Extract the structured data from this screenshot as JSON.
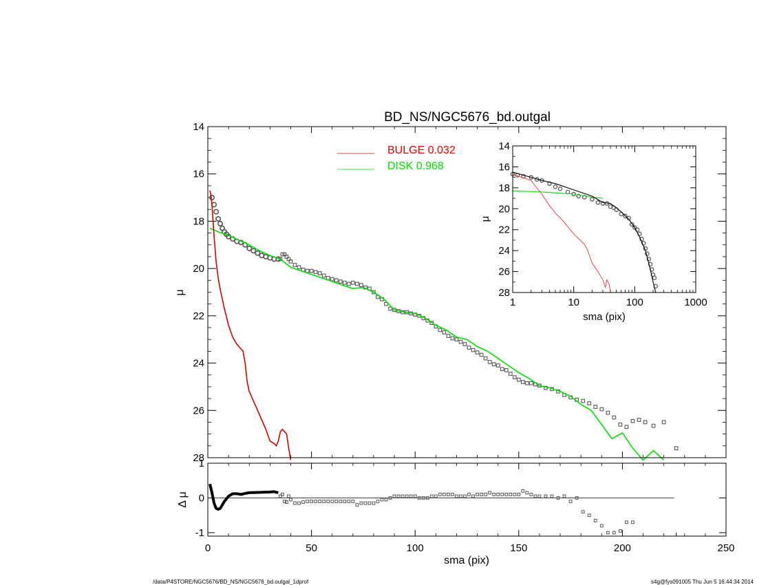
{
  "figure": {
    "title": "BD_NS/NGC5676_bd.outgal",
    "footer_left": "/data/P4STORE/NGC5676/BD_NS/NGC5676_bd.outgal_1dprof",
    "footer_right": "s4g@fys091005  Thu Jun  5 16:44:34 2014"
  },
  "legend": [
    {
      "label": "BULGE  0.032",
      "color": "#dd0000"
    },
    {
      "label": "DISK  0.968",
      "color": "#00dd00"
    }
  ],
  "colors": {
    "data": "#555555",
    "bulge": "#cc0000",
    "disk": "#00dd00",
    "model": "#000000",
    "inset_bulge": "#ee3333"
  },
  "chart_data": [
    {
      "type": "scatter",
      "role": "main surface brightness profile",
      "title": "BD_NS/NGC5676_bd.outgal",
      "xlabel": "sma (pix)",
      "ylabel": "μ",
      "xlim": [
        0,
        250
      ],
      "ylim": [
        28,
        14
      ],
      "yaxis_inverted": true,
      "x_ticks": [
        "0",
        "50",
        "100",
        "150",
        "200",
        "250"
      ],
      "y_ticks": [
        "14",
        "16",
        "18",
        "20",
        "22",
        "24",
        "26",
        "28"
      ],
      "series": [
        {
          "name": "BULGE  0.032",
          "kind": "line",
          "color": "#cc0000",
          "x": [
            1,
            1.5,
            2,
            3,
            4,
            5,
            6,
            8,
            10,
            12,
            14,
            16,
            17,
            18,
            19,
            20,
            22,
            24,
            26,
            28,
            30,
            32,
            33,
            34,
            35,
            36,
            37,
            38,
            39,
            40
          ],
          "y": [
            16.7,
            16.9,
            17.3,
            18.6,
            19.7,
            20.4,
            20.9,
            21.7,
            22.4,
            22.9,
            23.2,
            23.4,
            23.5,
            24.0,
            24.8,
            25.2,
            25.6,
            26.0,
            26.4,
            26.8,
            27.3,
            27.4,
            27.5,
            27.3,
            26.9,
            26.8,
            26.9,
            27.0,
            27.6,
            28.1
          ]
        },
        {
          "name": "DISK  0.968",
          "kind": "line",
          "color": "#00dd00",
          "x": [
            1,
            5,
            10,
            15,
            20,
            25,
            30,
            35,
            40,
            45,
            50,
            55,
            60,
            65,
            70,
            75,
            80,
            85,
            90,
            95,
            100,
            105,
            110,
            115,
            120,
            125,
            130,
            135,
            140,
            145,
            150,
            155,
            160,
            165,
            170,
            175,
            180,
            185,
            190,
            195,
            200,
            205,
            210,
            215,
            220
          ],
          "y": [
            18.3,
            18.45,
            18.6,
            18.8,
            19.0,
            19.25,
            19.45,
            19.6,
            19.95,
            20.1,
            20.25,
            20.4,
            20.55,
            20.7,
            20.85,
            20.8,
            21.0,
            21.3,
            21.75,
            21.85,
            21.9,
            22.1,
            22.4,
            22.6,
            22.9,
            23.0,
            23.3,
            23.5,
            23.8,
            24.1,
            24.4,
            24.65,
            24.95,
            25.05,
            25.2,
            25.4,
            25.75,
            26.0,
            26.6,
            27.2,
            26.95,
            27.6,
            28.1,
            27.7,
            28.1
          ]
        },
        {
          "name": "",
          "kind": "data points",
          "color": "#555555",
          "x": [
            2,
            3,
            4,
            5,
            6,
            7,
            8,
            9,
            10,
            12,
            14,
            16,
            18,
            20,
            22,
            24,
            26,
            28,
            30,
            32,
            34,
            35,
            36,
            37,
            38,
            39,
            40,
            42,
            44,
            46,
            48,
            50,
            52,
            54,
            56,
            58,
            60,
            62,
            64,
            66,
            68,
            70,
            72,
            74,
            76,
            78,
            80,
            82,
            84,
            86,
            88,
            90,
            92,
            94,
            96,
            98,
            100,
            102,
            104,
            106,
            108,
            110,
            112,
            114,
            116,
            118,
            120,
            122,
            124,
            126,
            128,
            130,
            132,
            134,
            136,
            138,
            140,
            142,
            144,
            146,
            148,
            150,
            152,
            154,
            156,
            158,
            160,
            163,
            166,
            169,
            172,
            175,
            178,
            181,
            184,
            187,
            190,
            193,
            196,
            199,
            202,
            205,
            208,
            211,
            215,
            220,
            226
          ],
          "y": [
            17.0,
            17.3,
            17.6,
            17.9,
            18.1,
            18.3,
            18.45,
            18.55,
            18.65,
            18.75,
            18.85,
            18.9,
            19.0,
            19.15,
            19.25,
            19.35,
            19.45,
            19.5,
            19.55,
            19.6,
            19.6,
            19.6,
            19.4,
            19.4,
            19.5,
            19.6,
            19.7,
            19.85,
            19.95,
            20.05,
            20.1,
            20.1,
            20.15,
            20.2,
            20.3,
            20.4,
            20.45,
            20.5,
            20.55,
            20.6,
            20.65,
            20.6,
            20.65,
            20.7,
            20.8,
            20.85,
            21.0,
            21.2,
            21.3,
            21.5,
            21.7,
            21.75,
            21.8,
            21.85,
            21.85,
            21.9,
            21.95,
            22.0,
            22.1,
            22.2,
            22.3,
            22.45,
            22.6,
            22.7,
            22.85,
            22.95,
            23.0,
            23.1,
            23.2,
            23.35,
            23.45,
            23.55,
            23.65,
            23.8,
            23.95,
            24.05,
            24.1,
            24.25,
            24.3,
            24.45,
            24.6,
            24.7,
            24.8,
            24.85,
            24.85,
            24.9,
            24.95,
            25.05,
            25.1,
            25.2,
            25.35,
            25.45,
            25.55,
            25.6,
            25.7,
            25.85,
            25.95,
            26.1,
            26.3,
            26.6,
            26.7,
            26.45,
            26.4,
            26.5,
            26.65,
            26.5,
            27.6
          ]
        }
      ]
    },
    {
      "type": "scatter",
      "role": "residual panel",
      "xlabel": "sma (pix)",
      "ylabel": "Δ μ",
      "xlim": [
        0,
        250
      ],
      "ylim": [
        -1.1,
        1.0
      ],
      "x_ticks": [
        "0",
        "50",
        "100",
        "150",
        "200",
        "250"
      ],
      "y_ticks": [
        "1",
        "0",
        "-1"
      ],
      "series": [
        {
          "name": "",
          "kind": "thick line",
          "color": "#000000",
          "x": [
            1,
            2,
            3,
            4,
            5,
            6,
            7,
            8,
            10,
            12,
            14,
            16,
            18,
            20,
            25,
            30,
            32,
            34
          ],
          "y": [
            0.4,
            0.15,
            -0.15,
            -0.3,
            -0.33,
            -0.3,
            -0.2,
            -0.1,
            0.05,
            0.12,
            0.12,
            0.1,
            0.13,
            0.15,
            0.16,
            0.17,
            0.18,
            0.15
          ]
        },
        {
          "name": "",
          "kind": "data points",
          "color": "#555555",
          "x": [
            35,
            36,
            37,
            38,
            39,
            40,
            42,
            44,
            46,
            48,
            50,
            52,
            54,
            56,
            58,
            60,
            62,
            64,
            66,
            68,
            70,
            72,
            74,
            76,
            78,
            80,
            82,
            84,
            86,
            88,
            90,
            92,
            94,
            96,
            98,
            100,
            102,
            104,
            106,
            108,
            110,
            112,
            114,
            116,
            118,
            120,
            122,
            124,
            126,
            128,
            130,
            132,
            134,
            136,
            138,
            140,
            142,
            144,
            146,
            148,
            150,
            152,
            154,
            156,
            158,
            160,
            163,
            166,
            169,
            172,
            175,
            178,
            181,
            184,
            187,
            190,
            193,
            196,
            199,
            202,
            205
          ],
          "y": [
            0.05,
            0.1,
            -0.1,
            -0.12,
            0.05,
            -0.05,
            -0.15,
            -0.15,
            -0.12,
            -0.1,
            -0.1,
            -0.1,
            -0.1,
            -0.1,
            -0.1,
            -0.1,
            -0.1,
            -0.1,
            -0.1,
            -0.1,
            -0.1,
            -0.2,
            -0.15,
            -0.15,
            -0.15,
            -0.15,
            -0.1,
            -0.05,
            -0.05,
            0.0,
            0.05,
            0.05,
            0.05,
            0.05,
            0.05,
            0.05,
            0.0,
            0.0,
            0.0,
            0.05,
            0.05,
            0.1,
            0.1,
            0.1,
            0.1,
            0.05,
            0.05,
            0.05,
            0.1,
            0.05,
            0.1,
            0.1,
            0.1,
            0.15,
            0.1,
            0.1,
            0.1,
            0.1,
            0.1,
            0.1,
            0.1,
            0.2,
            0.15,
            0.1,
            0.05,
            0.05,
            0.05,
            0.05,
            0.0,
            0.05,
            -0.1,
            0.0,
            -0.4,
            -0.5,
            -0.65,
            -0.8,
            -1.0,
            -1.0,
            -0.95,
            -0.7,
            -0.7
          ]
        },
        {
          "name": "",
          "kind": "zero line",
          "color": "#000000",
          "x": [
            0,
            225
          ],
          "y": [
            0,
            0
          ]
        }
      ]
    },
    {
      "type": "scatter",
      "role": "inset (log x)",
      "xlabel": "sma (pix)",
      "ylabel": "μ",
      "xscale": "log",
      "xlim": [
        1,
        1000
      ],
      "ylim": [
        28,
        14
      ],
      "yaxis_inverted": true,
      "x_ticks": [
        "1",
        "10",
        "100",
        "1000"
      ],
      "y_ticks": [
        "14",
        "16",
        "18",
        "20",
        "22",
        "24",
        "26",
        "28"
      ],
      "series": [
        {
          "name": "",
          "kind": "line",
          "color": "#ee3333",
          "x": [
            1,
            2,
            3,
            4,
            5,
            7,
            10,
            15,
            17,
            20,
            25,
            30,
            33,
            35,
            38,
            40
          ],
          "y": [
            16.7,
            17.3,
            18.6,
            19.7,
            20.4,
            21.3,
            22.4,
            23.4,
            24.0,
            25.2,
            26.0,
            26.8,
            27.5,
            26.8,
            27.2,
            28.0
          ]
        },
        {
          "name": "",
          "kind": "line",
          "color": "#00dd00",
          "x": [
            1,
            3,
            10,
            20,
            30
          ],
          "y": [
            18.3,
            18.4,
            18.6,
            18.9,
            19.0
          ]
        },
        {
          "name": "",
          "kind": "model line",
          "color": "#000000",
          "x": [
            1,
            1.5,
            2,
            3,
            5,
            10,
            20,
            30,
            40,
            50,
            60,
            80,
            100,
            120,
            150,
            180,
            200,
            220
          ],
          "y": [
            16.5,
            16.8,
            17.0,
            17.3,
            17.6,
            18.2,
            18.8,
            19.4,
            19.5,
            19.9,
            20.3,
            21.0,
            21.8,
            22.7,
            24.0,
            25.8,
            27.0,
            28.0
          ]
        },
        {
          "name": "",
          "kind": "data points",
          "color": "#555555",
          "x": [
            1,
            1.2,
            1.5,
            2,
            2.5,
            3,
            4,
            5,
            6,
            8,
            10,
            12,
            15,
            20,
            25,
            30,
            35,
            40,
            45,
            50,
            60,
            70,
            80,
            90,
            100,
            110,
            120,
            130,
            140,
            150,
            160,
            170,
            180,
            190,
            200,
            210,
            220
          ],
          "y": [
            16.7,
            16.8,
            16.9,
            17.0,
            17.2,
            17.3,
            17.6,
            17.9,
            18.1,
            18.4,
            18.6,
            18.8,
            18.9,
            19.1,
            19.4,
            19.5,
            19.5,
            19.8,
            19.9,
            20.1,
            20.5,
            20.7,
            20.9,
            21.5,
            21.8,
            22.0,
            22.4,
            22.9,
            23.3,
            23.8,
            24.3,
            24.8,
            25.3,
            25.8,
            26.3,
            26.6,
            27.4
          ]
        }
      ]
    }
  ]
}
